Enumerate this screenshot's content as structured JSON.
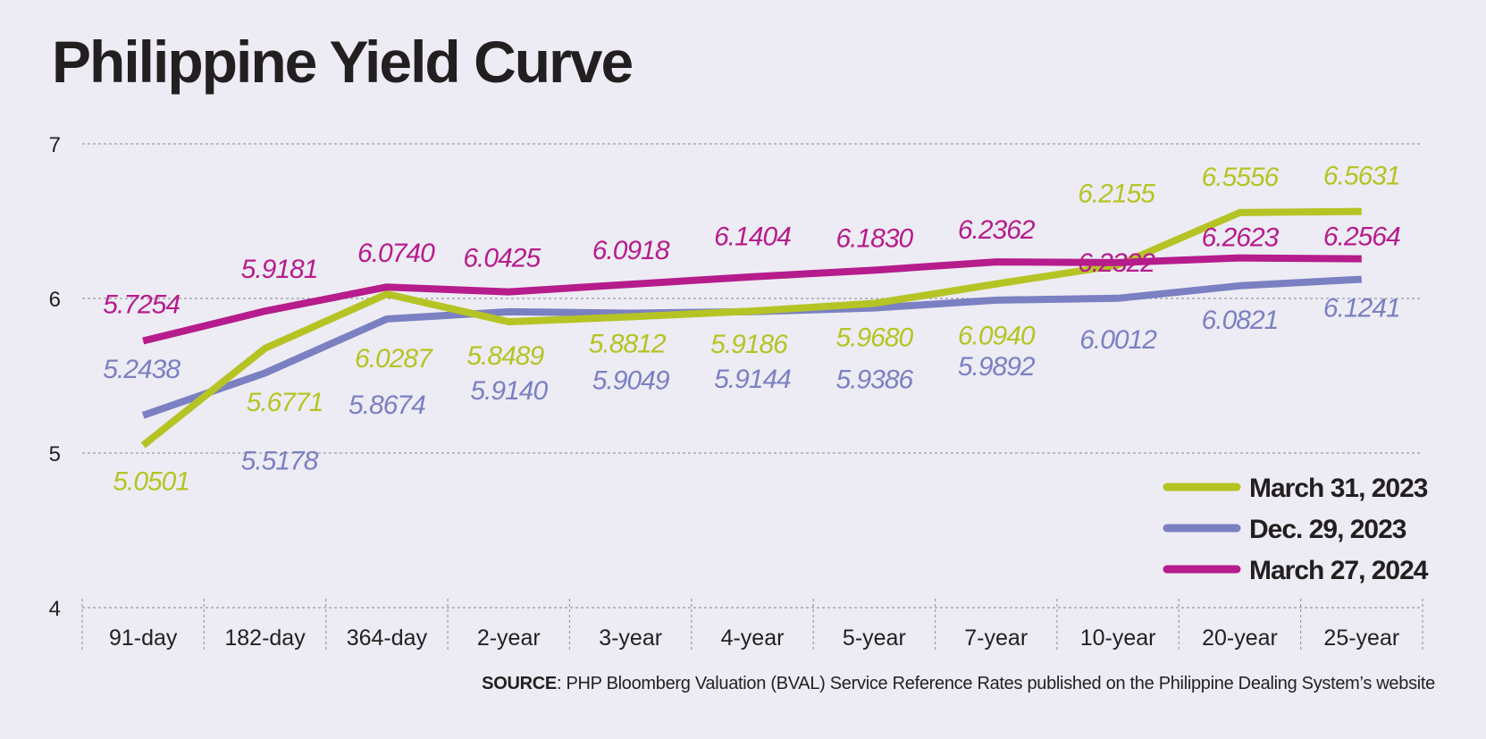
{
  "chart_data": {
    "type": "line",
    "title": "Philippine Yield Curve",
    "categories": [
      "91-day",
      "182-day",
      "364-day",
      "2-year",
      "3-year",
      "4-year",
      "5-year",
      "7-year",
      "10-year",
      "20-year",
      "25-year"
    ],
    "ylim": [
      4,
      7
    ],
    "yticks": [
      "4",
      "5",
      "6",
      "7"
    ],
    "grid": true,
    "legend_position": "bottom-right",
    "series": [
      {
        "name": "March 31, 2023",
        "color": "#b5c424",
        "values": [
          5.0501,
          5.6771,
          6.0287,
          5.8489,
          5.8812,
          5.9186,
          5.968,
          6.094,
          6.2155,
          6.5556,
          6.5631
        ],
        "labels": [
          "5.0501",
          "5.6771",
          "6.0287",
          "5.8489",
          "5.8812",
          "5.9186",
          "5.9680",
          "6.0940",
          "6.2155",
          "6.5556",
          "6.5631"
        ]
      },
      {
        "name": "Dec. 29, 2023",
        "color": "#7b80c2",
        "values": [
          5.2438,
          5.5178,
          5.8674,
          5.914,
          5.9049,
          5.9144,
          5.9386,
          5.9892,
          6.0012,
          6.0821,
          6.1241
        ],
        "labels": [
          "5.2438",
          "5.5178",
          "5.8674",
          "5.9140",
          "5.9049",
          "5.9144",
          "5.9386",
          "5.9892",
          "6.0012",
          "6.0821",
          "6.1241"
        ]
      },
      {
        "name": "March 27, 2024",
        "color": "#b61c8c",
        "values": [
          5.7254,
          5.9181,
          6.074,
          6.0425,
          6.0918,
          6.1404,
          6.183,
          6.2362,
          6.2322,
          6.2623,
          6.2564
        ],
        "labels": [
          "5.7254",
          "5.9181",
          "6.0740",
          "6.0425",
          "6.0918",
          "6.1404",
          "6.1830",
          "6.2362",
          "6.2322",
          "6.2623",
          "6.2564"
        ]
      }
    ]
  },
  "source": {
    "label": "SOURCE",
    "text": ": PHP Bloomberg Valuation (BVAL) Service Reference Rates published on the Philippine Dealing System’s website"
  }
}
